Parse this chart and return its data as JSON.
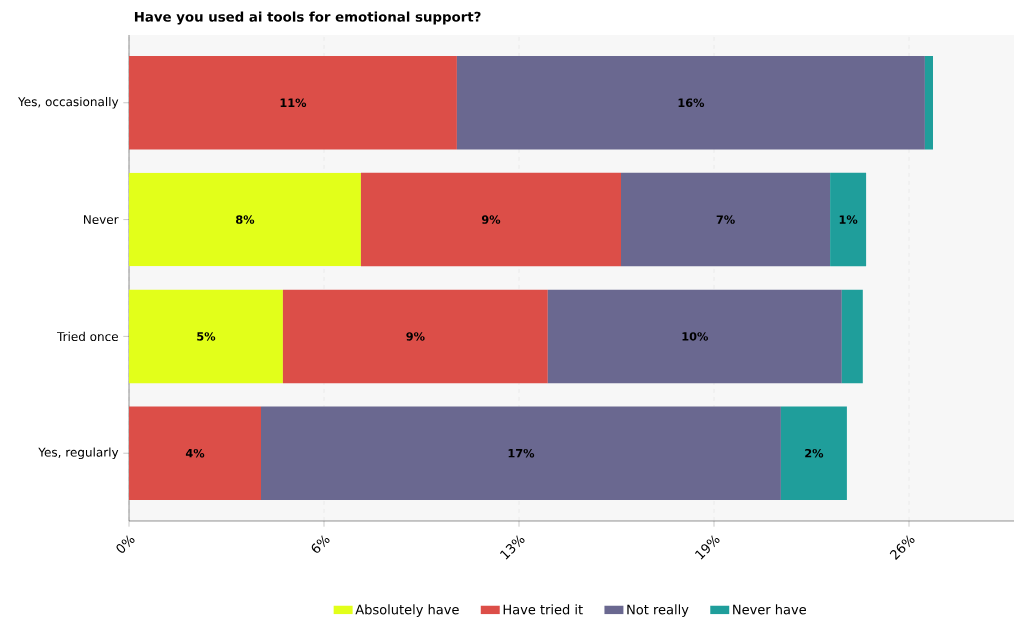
{
  "chart_data": {
    "type": "bar",
    "orientation": "horizontal",
    "stacked": true,
    "title": "Have you used ai tools for emotional support?",
    "categories": [
      "Yes, occasionally",
      "Never",
      "Tried once",
      "Yes, regularly"
    ],
    "series": [
      {
        "name": "Absolutely have",
        "color": "#e2ff1a",
        "values": [
          null,
          7.73,
          5.13,
          null
        ],
        "value_labels": [
          null,
          "8%",
          "5%",
          null
        ]
      },
      {
        "name": "Have tried it",
        "color": "#dc4e48",
        "values": [
          10.93,
          8.67,
          8.83,
          4.4
        ],
        "value_labels": [
          "11%",
          "9%",
          "9%",
          "4%"
        ]
      },
      {
        "name": "Not really",
        "color": "#6a6890",
        "values": [
          15.6,
          6.97,
          9.8,
          17.33
        ],
        "value_labels": [
          "16%",
          "7%",
          "10%",
          "17%"
        ]
      },
      {
        "name": "Never have",
        "color": "#1f9e9b",
        "values": [
          0.27,
          1.2,
          0.7,
          2.2
        ],
        "value_labels": [
          null,
          "1%",
          null,
          "2%"
        ]
      }
    ],
    "xlim": [
      0,
      29.5
    ],
    "xticks": [
      {
        "value": 0,
        "label": "0%"
      },
      {
        "value": 6.5,
        "label": "6%"
      },
      {
        "value": 13,
        "label": "13%"
      },
      {
        "value": 19.5,
        "label": "19%"
      },
      {
        "value": 26,
        "label": "26%"
      }
    ],
    "grid": "x",
    "legend": "bottom"
  }
}
